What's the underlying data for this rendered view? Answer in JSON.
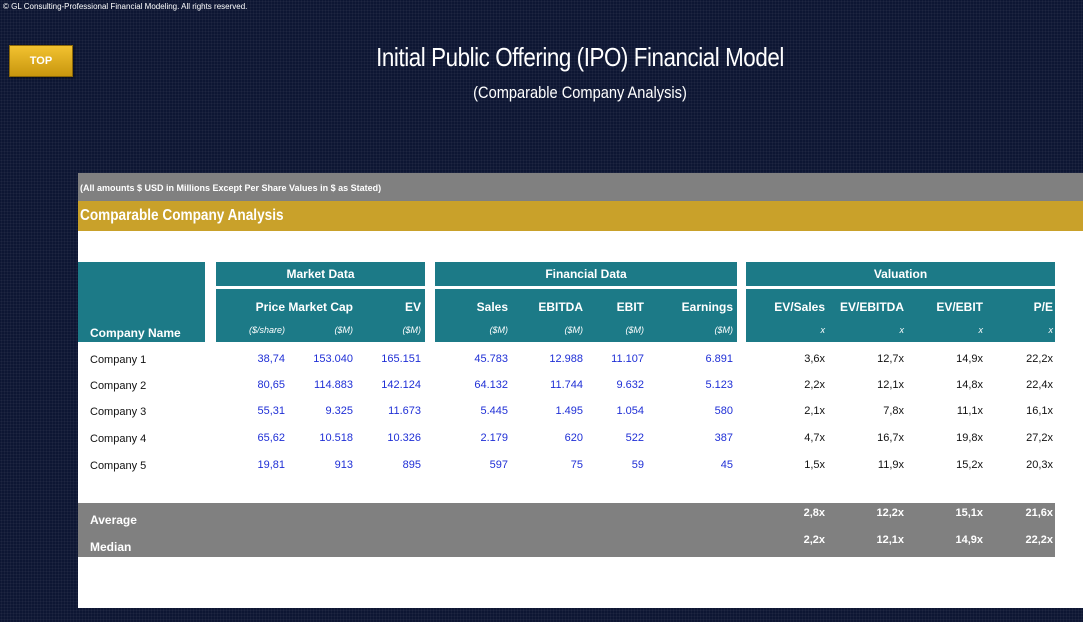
{
  "copyright": "© GL Consulting-Professional Financial Modeling. All rights reserved.",
  "top_button": "TOP",
  "title": "Initial Public Offering (IPO) Financial Model",
  "subtitle": "(Comparable Company Analysis)",
  "note": "(All amounts $ USD in Millions Except Per Share Values in $ as Stated)",
  "section": "Comparable Company Analysis",
  "company_name_header": "Company Name",
  "groups": {
    "market": "Market Data",
    "financial": "Financial Data",
    "valuation": "Valuation"
  },
  "columns": [
    {
      "label": "Price",
      "unit": "($/share)"
    },
    {
      "label": "Market Cap",
      "unit": "($M)"
    },
    {
      "label": "EV",
      "unit": "($M)"
    },
    {
      "label": "Sales",
      "unit": "($M)"
    },
    {
      "label": "EBITDA",
      "unit": "($M)"
    },
    {
      "label": "EBIT",
      "unit": "($M)"
    },
    {
      "label": "Earnings",
      "unit": "($M)"
    },
    {
      "label": "EV/Sales",
      "unit": "x"
    },
    {
      "label": "EV/EBITDA",
      "unit": "x"
    },
    {
      "label": "EV/EBIT",
      "unit": "x"
    },
    {
      "label": "P/E",
      "unit": "x"
    }
  ],
  "rows": [
    {
      "name": "Company 1",
      "values": [
        "38,74",
        "153.040",
        "165.151",
        "45.783",
        "12.988",
        "11.107",
        "6.891",
        "3,6x",
        "12,7x",
        "14,9x",
        "22,2x"
      ]
    },
    {
      "name": "Company 2",
      "values": [
        "80,65",
        "114.883",
        "142.124",
        "64.132",
        "11.744",
        "9.632",
        "5.123",
        "2,2x",
        "12,1x",
        "14,8x",
        "22,4x"
      ]
    },
    {
      "name": "Company 3",
      "values": [
        "55,31",
        "9.325",
        "11.673",
        "5.445",
        "1.495",
        "1.054",
        "580",
        "2,1x",
        "7,8x",
        "11,1x",
        "16,1x"
      ]
    },
    {
      "name": "Company 4",
      "values": [
        "65,62",
        "10.518",
        "10.326",
        "2.179",
        "620",
        "522",
        "387",
        "4,7x",
        "16,7x",
        "19,8x",
        "27,2x"
      ]
    },
    {
      "name": "Company 5",
      "values": [
        "19,81",
        "913",
        "895",
        "597",
        "75",
        "59",
        "45",
        "1,5x",
        "11,9x",
        "15,2x",
        "20,3x"
      ]
    }
  ],
  "stats": [
    {
      "label": "Average",
      "values": [
        "2,8x",
        "12,2x",
        "15,1x",
        "21,6x"
      ]
    },
    {
      "label": "Median",
      "values": [
        "2,2x",
        "12,1x",
        "14,9x",
        "22,2x"
      ]
    }
  ],
  "colors": {
    "teal": "#1c7a87",
    "gold": "#c9a12a",
    "gray": "#808080",
    "blue_values": "#1f2fd6",
    "background": "#0d1633"
  }
}
